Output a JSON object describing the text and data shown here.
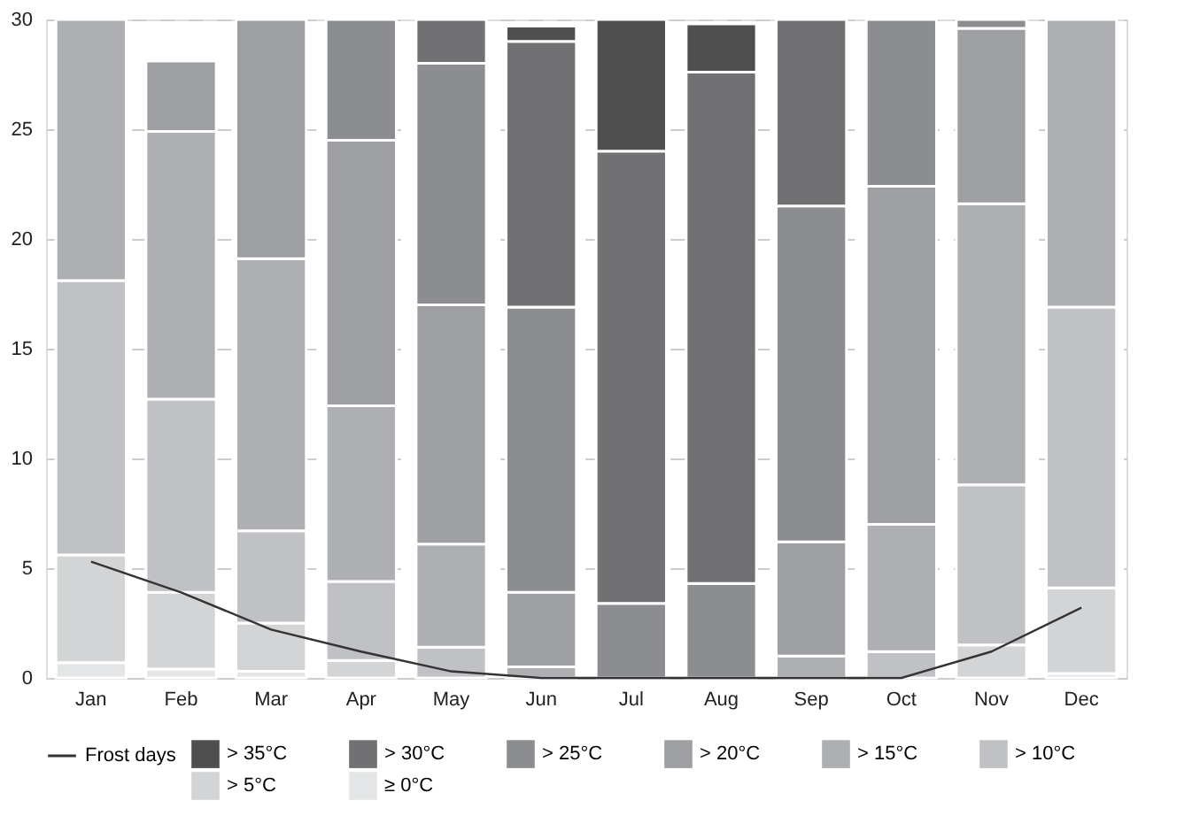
{
  "chart_data": {
    "type": "bar",
    "stacked": true,
    "categories": [
      "Jan",
      "Feb",
      "Mar",
      "Apr",
      "May",
      "Jun",
      "Jul",
      "Aug",
      "Sep",
      "Oct",
      "Nov",
      "Dec"
    ],
    "series": [
      {
        "name": "≥ 0°C",
        "color": "#e4e5e6",
        "values": [
          0.7,
          0.4,
          0.3,
          null,
          null,
          null,
          null,
          null,
          null,
          null,
          null,
          0.2
        ]
      },
      {
        "name": "> 5°C",
        "color": "#d3d4d6",
        "values": [
          4.9,
          3.5,
          2.2,
          0.8,
          null,
          null,
          null,
          null,
          null,
          null,
          1.5,
          3.9
        ]
      },
      {
        "name": "> 10°C",
        "color": "#c0c1c4",
        "values": [
          12.5,
          8.8,
          4.2,
          3.6,
          1.4,
          null,
          null,
          null,
          null,
          1.2,
          7.3,
          12.8
        ]
      },
      {
        "name": "> 15°C",
        "color": "#aeafb2",
        "values": [
          11.9,
          12.2,
          12.4,
          8.0,
          4.7,
          0.5,
          null,
          null,
          1.0,
          5.8,
          12.8,
          13.1
        ]
      },
      {
        "name": "> 20°C",
        "color": "#9e9fa2",
        "values": [
          null,
          3.2,
          10.9,
          12.1,
          10.9,
          3.4,
          null,
          null,
          5.2,
          15.4,
          8.0,
          null
        ]
      },
      {
        "name": "> 25°C",
        "color": "#8c8d90",
        "values": [
          null,
          null,
          null,
          5.5,
          11.0,
          13.0,
          3.4,
          4.3,
          15.3,
          7.6,
          0.4,
          null
        ]
      },
      {
        "name": "> 30°C",
        "color": "#717173",
        "values": [
          null,
          null,
          null,
          null,
          2.0,
          12.1,
          20.6,
          23.3,
          8.5,
          null,
          null,
          null
        ]
      },
      {
        "name": "> 35°C",
        "color": "#4f4f4f",
        "values": [
          null,
          null,
          null,
          null,
          null,
          0.7,
          6.0,
          2.2,
          null,
          null,
          null,
          null
        ]
      },
      {
        "name": "Frost days",
        "type": "line",
        "color": "#333333",
        "values": [
          5.3,
          3.9,
          2.2,
          1.2,
          0.3,
          0,
          0,
          0,
          0,
          0,
          1.2,
          3.2
        ]
      }
    ],
    "ylim": [
      0,
      30
    ],
    "yticks": [
      0,
      5,
      10,
      15,
      20,
      25,
      30
    ],
    "grid": "y",
    "legend": "bottom",
    "line_style": "solid",
    "marker": "none"
  }
}
